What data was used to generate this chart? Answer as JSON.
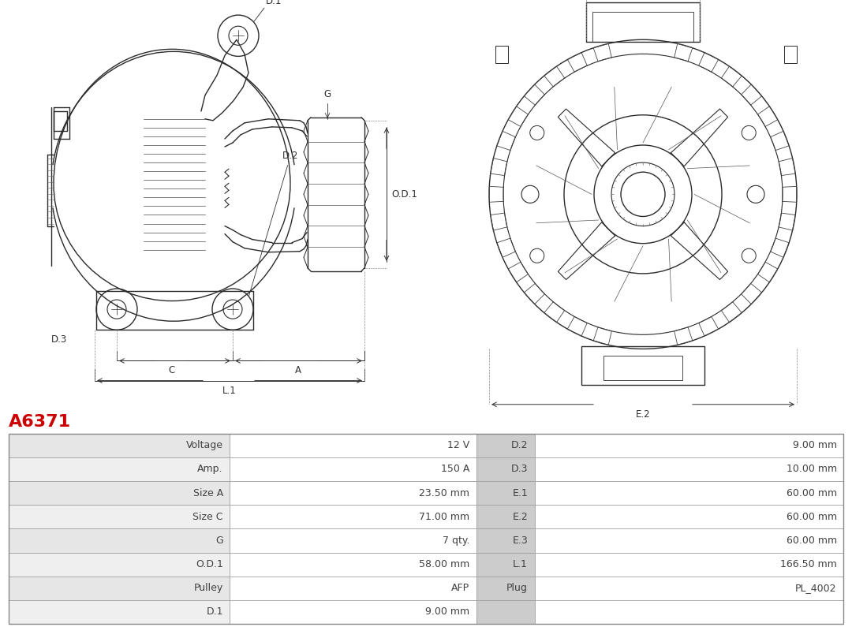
{
  "title": "A6371",
  "title_color": "#cc0000",
  "bg_color": "#ffffff",
  "table_rows": [
    [
      "Voltage",
      "12 V",
      "D.2",
      "9.00 mm"
    ],
    [
      "Amp.",
      "150 A",
      "D.3",
      "10.00 mm"
    ],
    [
      "Size A",
      "23.50 mm",
      "E.1",
      "60.00 mm"
    ],
    [
      "Size C",
      "71.00 mm",
      "E.2",
      "60.00 mm"
    ],
    [
      "G",
      "7 qty.",
      "E.3",
      "60.00 mm"
    ],
    [
      "O.D.1",
      "58.00 mm",
      "L.1",
      "166.50 mm"
    ],
    [
      "Pulley",
      "AFP",
      "Plug",
      "PL_4002"
    ],
    [
      "D.1",
      "9.00 mm",
      "",
      ""
    ]
  ],
  "text_color": "#404040",
  "border_color": "#aaaaaa",
  "font_size": 9
}
